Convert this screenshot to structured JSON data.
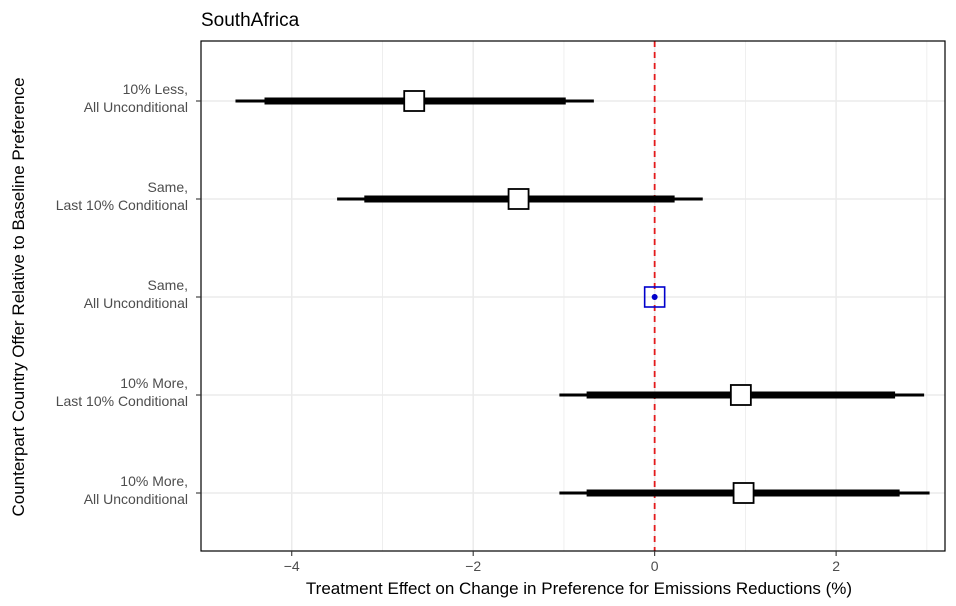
{
  "chart_data": {
    "type": "forest",
    "title": "SouthAfrica",
    "xlabel": "Treatment Effect on Change in Preference for Emissions Reductions (%)",
    "ylabel": "Counterpart Country Offer Relative to Baseline Preference",
    "xlim": [
      -5.0,
      3.2
    ],
    "x_ticks": [
      -4,
      -2,
      0,
      2
    ],
    "x_tick_labels": [
      "−4",
      "−2",
      "0",
      "2"
    ],
    "reference_line": {
      "x": 0,
      "style": "dashed",
      "color": "#e31a1c"
    },
    "grid": true,
    "categories": [
      {
        "line1": "10% Less,",
        "line2": "All Unconditional"
      },
      {
        "line1": "Same,",
        "line2": "Last 10% Conditional"
      },
      {
        "line1": "Same,",
        "line2": "All Unconditional"
      },
      {
        "line1": "10% More,",
        "line2": "Last 10% Conditional"
      },
      {
        "line1": "10% More,",
        "line2": "All Unconditional"
      }
    ],
    "estimates": [
      {
        "estimate": -2.65,
        "ci90": [
          -4.3,
          -0.98
        ],
        "ci95": [
          -4.62,
          -0.67
        ],
        "baseline": false
      },
      {
        "estimate": -1.5,
        "ci90": [
          -3.2,
          0.22
        ],
        "ci95": [
          -3.5,
          0.53
        ],
        "baseline": false
      },
      {
        "estimate": 0.0,
        "ci90": [
          0.0,
          0.0
        ],
        "ci95": [
          0.0,
          0.0
        ],
        "baseline": true
      },
      {
        "estimate": 0.95,
        "ci90": [
          -0.75,
          2.65
        ],
        "ci95": [
          -1.05,
          2.97
        ],
        "baseline": false
      },
      {
        "estimate": 0.98,
        "ci90": [
          -0.75,
          2.7
        ],
        "ci95": [
          -1.05,
          3.03
        ],
        "baseline": false
      }
    ],
    "colors": {
      "estimate": "#000000",
      "baseline": "#0000cc",
      "reference": "#e31a1c",
      "grid": "#ebebeb"
    }
  }
}
